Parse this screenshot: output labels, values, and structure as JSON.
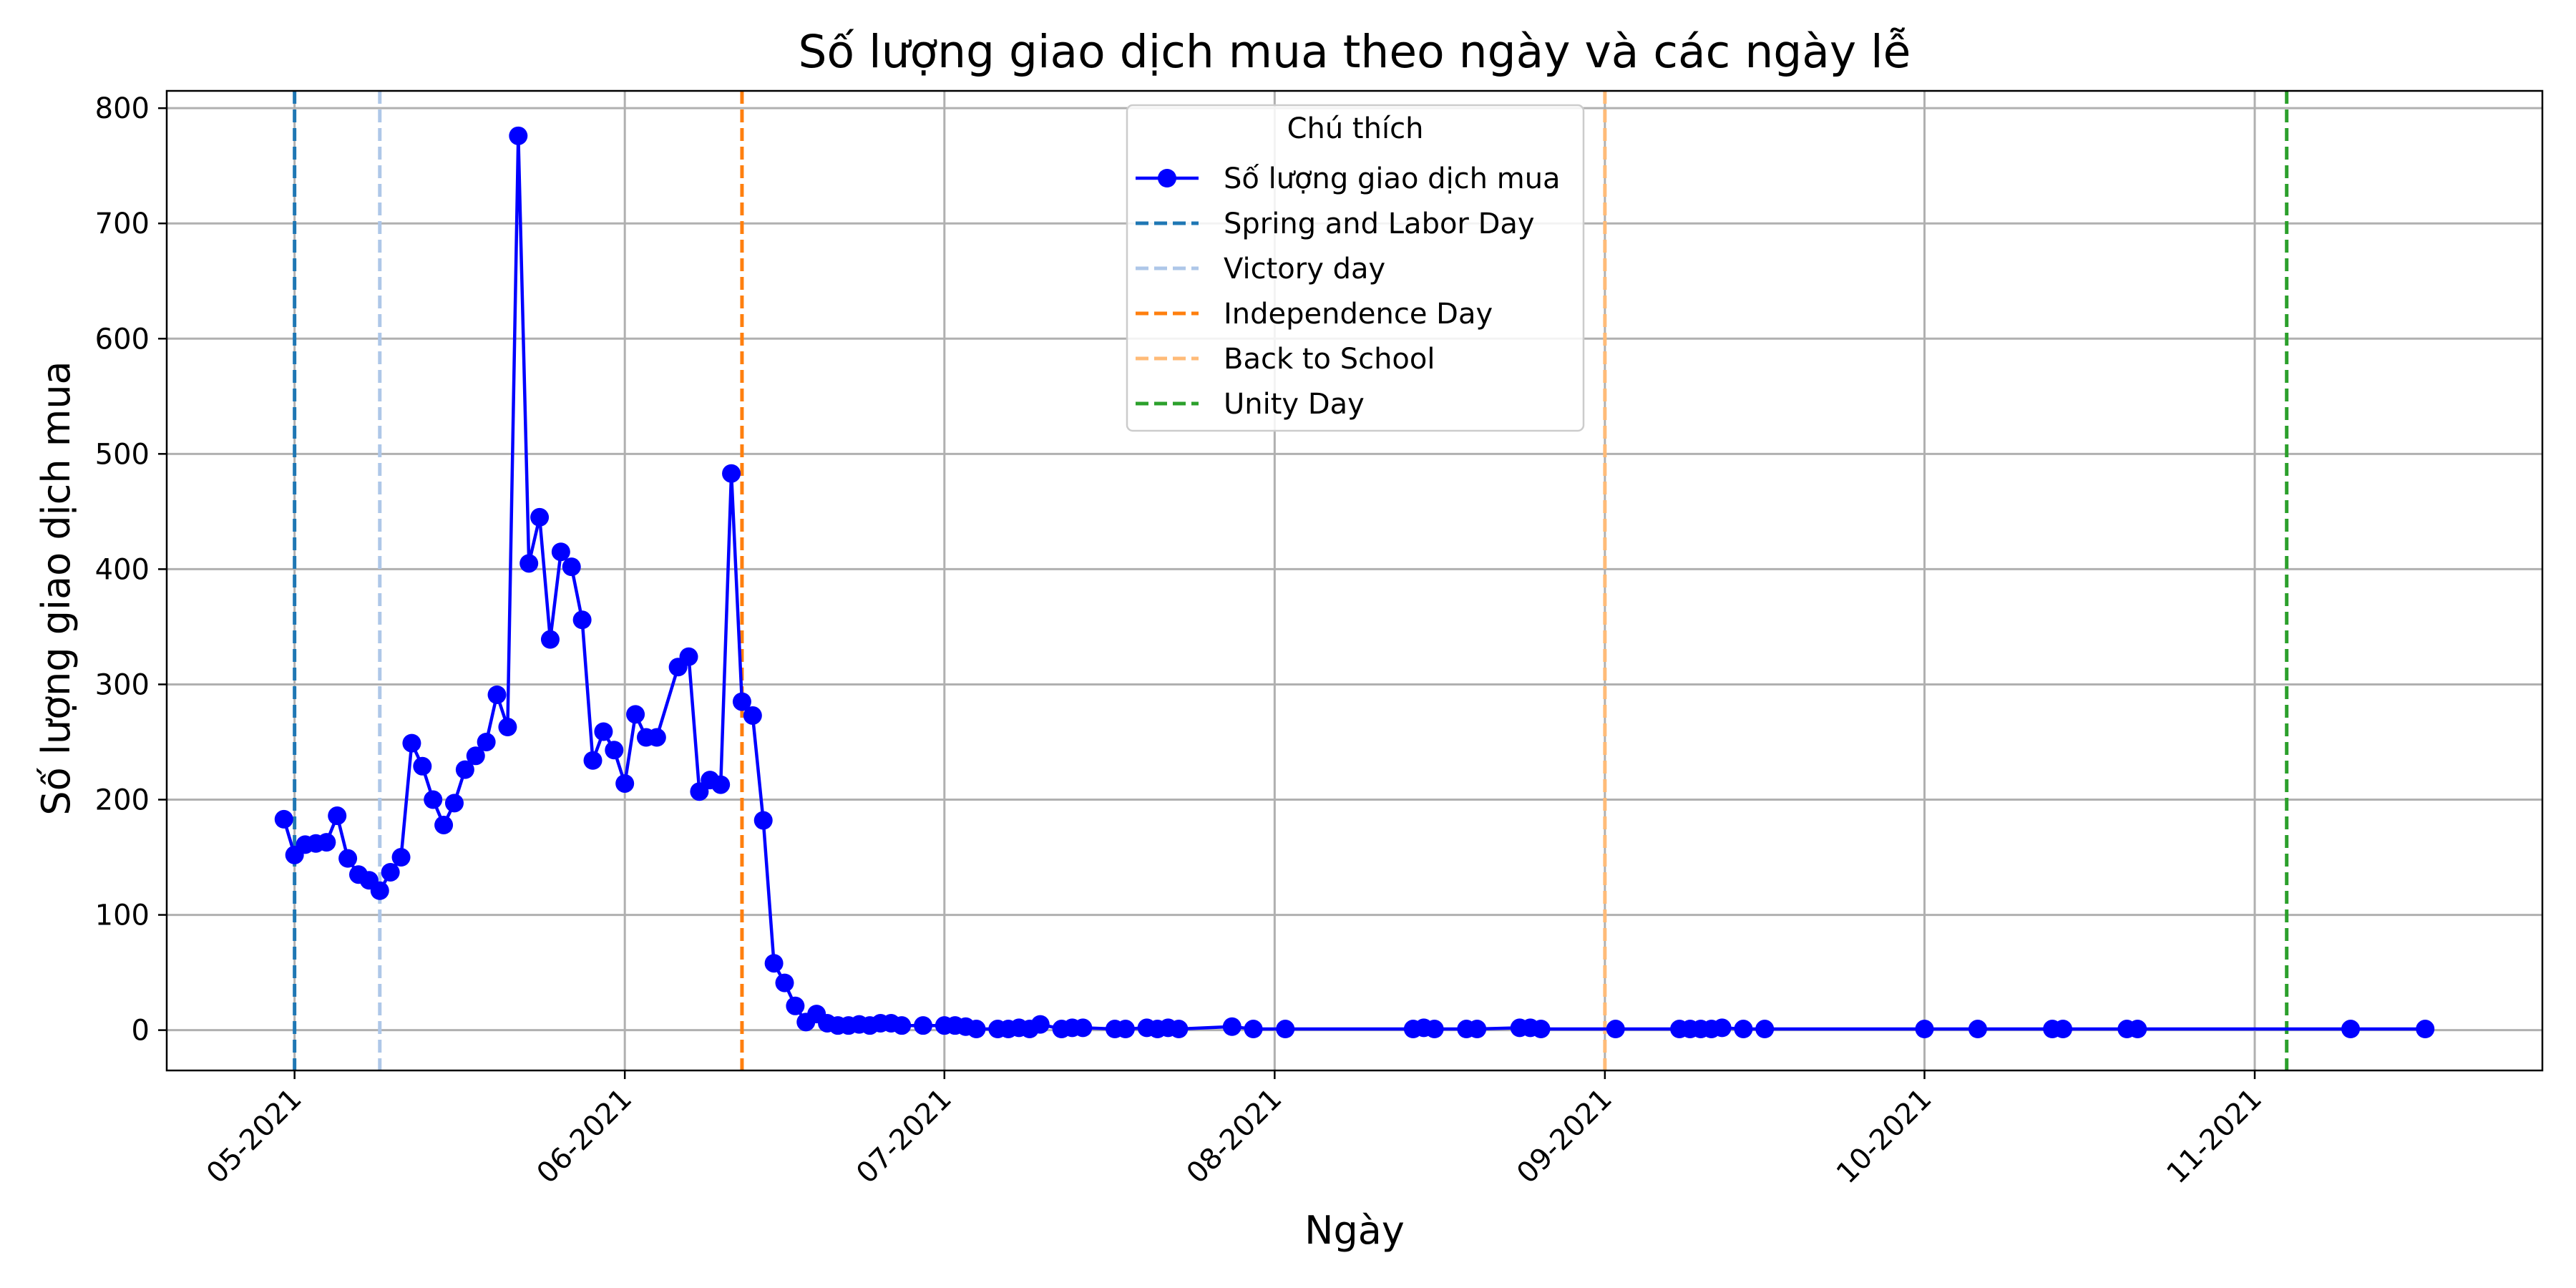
{
  "chart_data": {
    "type": "line",
    "title": "Số lượng giao dịch mua theo ngày và các ngày lễ",
    "xlabel": "Ngày",
    "ylabel": "Số lượng giao dịch mua",
    "x_axis_type": "date",
    "xlim": [
      "2021-04-19",
      "2021-11-28"
    ],
    "ylim": [
      -35,
      815
    ],
    "y_ticks": [
      0,
      100,
      200,
      300,
      400,
      500,
      600,
      700,
      800
    ],
    "x_ticks": [
      {
        "date": "2021-05-01",
        "label": "05-2021"
      },
      {
        "date": "2021-06-01",
        "label": "06-2021"
      },
      {
        "date": "2021-07-01",
        "label": "07-2021"
      },
      {
        "date": "2021-08-01",
        "label": "08-2021"
      },
      {
        "date": "2021-09-01",
        "label": "09-2021"
      },
      {
        "date": "2021-10-01",
        "label": "10-2021"
      },
      {
        "date": "2021-11-01",
        "label": "11-2021"
      }
    ],
    "grid": true,
    "legend": {
      "title": "Chú thích",
      "position": "top-center"
    },
    "series": [
      {
        "name": "Số lượng giao dịch mua",
        "color": "#0000ff",
        "marker": "circle",
        "points": [
          {
            "x": "2021-04-30",
            "y": 183
          },
          {
            "x": "2021-05-01",
            "y": 152
          },
          {
            "x": "2021-05-02",
            "y": 161
          },
          {
            "x": "2021-05-03",
            "y": 162
          },
          {
            "x": "2021-05-04",
            "y": 163
          },
          {
            "x": "2021-05-05",
            "y": 186
          },
          {
            "x": "2021-05-06",
            "y": 149
          },
          {
            "x": "2021-05-07",
            "y": 135
          },
          {
            "x": "2021-05-08",
            "y": 130
          },
          {
            "x": "2021-05-09",
            "y": 121
          },
          {
            "x": "2021-05-10",
            "y": 137
          },
          {
            "x": "2021-05-11",
            "y": 150
          },
          {
            "x": "2021-05-12",
            "y": 249
          },
          {
            "x": "2021-05-13",
            "y": 229
          },
          {
            "x": "2021-05-14",
            "y": 200
          },
          {
            "x": "2021-05-15",
            "y": 178
          },
          {
            "x": "2021-05-16",
            "y": 197
          },
          {
            "x": "2021-05-17",
            "y": 226
          },
          {
            "x": "2021-05-18",
            "y": 238
          },
          {
            "x": "2021-05-19",
            "y": 250
          },
          {
            "x": "2021-05-20",
            "y": 291
          },
          {
            "x": "2021-05-21",
            "y": 263
          },
          {
            "x": "2021-05-22",
            "y": 776
          },
          {
            "x": "2021-05-23",
            "y": 405
          },
          {
            "x": "2021-05-24",
            "y": 445
          },
          {
            "x": "2021-05-25",
            "y": 339
          },
          {
            "x": "2021-05-26",
            "y": 415
          },
          {
            "x": "2021-05-27",
            "y": 402
          },
          {
            "x": "2021-05-28",
            "y": 356
          },
          {
            "x": "2021-05-29",
            "y": 234
          },
          {
            "x": "2021-05-30",
            "y": 259
          },
          {
            "x": "2021-05-31",
            "y": 243
          },
          {
            "x": "2021-06-01",
            "y": 214
          },
          {
            "x": "2021-06-02",
            "y": 274
          },
          {
            "x": "2021-06-03",
            "y": 254
          },
          {
            "x": "2021-06-04",
            "y": 254
          },
          {
            "x": "2021-06-06",
            "y": 315
          },
          {
            "x": "2021-06-07",
            "y": 324
          },
          {
            "x": "2021-06-08",
            "y": 207
          },
          {
            "x": "2021-06-09",
            "y": 217
          },
          {
            "x": "2021-06-10",
            "y": 213
          },
          {
            "x": "2021-06-11",
            "y": 483
          },
          {
            "x": "2021-06-12",
            "y": 285
          },
          {
            "x": "2021-06-13",
            "y": 273
          },
          {
            "x": "2021-06-14",
            "y": 182
          },
          {
            "x": "2021-06-15",
            "y": 58
          },
          {
            "x": "2021-06-16",
            "y": 41
          },
          {
            "x": "2021-06-17",
            "y": 21
          },
          {
            "x": "2021-06-18",
            "y": 7
          },
          {
            "x": "2021-06-19",
            "y": 14
          },
          {
            "x": "2021-06-20",
            "y": 6
          },
          {
            "x": "2021-06-21",
            "y": 4
          },
          {
            "x": "2021-06-22",
            "y": 4
          },
          {
            "x": "2021-06-23",
            "y": 5
          },
          {
            "x": "2021-06-24",
            "y": 4
          },
          {
            "x": "2021-06-25",
            "y": 6
          },
          {
            "x": "2021-06-26",
            "y": 6
          },
          {
            "x": "2021-06-27",
            "y": 4
          },
          {
            "x": "2021-06-29",
            "y": 4
          },
          {
            "x": "2021-07-01",
            "y": 4
          },
          {
            "x": "2021-07-02",
            "y": 4
          },
          {
            "x": "2021-07-03",
            "y": 3
          },
          {
            "x": "2021-07-04",
            "y": 1
          },
          {
            "x": "2021-07-06",
            "y": 1
          },
          {
            "x": "2021-07-07",
            "y": 1
          },
          {
            "x": "2021-07-08",
            "y": 2
          },
          {
            "x": "2021-07-09",
            "y": 1
          },
          {
            "x": "2021-07-10",
            "y": 5
          },
          {
            "x": "2021-07-12",
            "y": 1
          },
          {
            "x": "2021-07-13",
            "y": 2
          },
          {
            "x": "2021-07-14",
            "y": 2
          },
          {
            "x": "2021-07-17",
            "y": 1
          },
          {
            "x": "2021-07-18",
            "y": 1
          },
          {
            "x": "2021-07-20",
            "y": 2
          },
          {
            "x": "2021-07-21",
            "y": 1
          },
          {
            "x": "2021-07-22",
            "y": 2
          },
          {
            "x": "2021-07-23",
            "y": 1
          },
          {
            "x": "2021-07-28",
            "y": 3
          },
          {
            "x": "2021-07-30",
            "y": 1
          },
          {
            "x": "2021-08-02",
            "y": 1
          },
          {
            "x": "2021-08-14",
            "y": 1
          },
          {
            "x": "2021-08-15",
            "y": 2
          },
          {
            "x": "2021-08-16",
            "y": 1
          },
          {
            "x": "2021-08-19",
            "y": 1
          },
          {
            "x": "2021-08-20",
            "y": 1
          },
          {
            "x": "2021-08-24",
            "y": 2
          },
          {
            "x": "2021-08-25",
            "y": 2
          },
          {
            "x": "2021-08-26",
            "y": 1
          },
          {
            "x": "2021-09-02",
            "y": 1
          },
          {
            "x": "2021-09-08",
            "y": 1
          },
          {
            "x": "2021-09-09",
            "y": 1
          },
          {
            "x": "2021-09-10",
            "y": 1
          },
          {
            "x": "2021-09-11",
            "y": 1
          },
          {
            "x": "2021-09-12",
            "y": 2
          },
          {
            "x": "2021-09-14",
            "y": 1
          },
          {
            "x": "2021-09-16",
            "y": 1
          },
          {
            "x": "2021-10-01",
            "y": 1
          },
          {
            "x": "2021-10-06",
            "y": 1
          },
          {
            "x": "2021-10-13",
            "y": 1
          },
          {
            "x": "2021-10-14",
            "y": 1
          },
          {
            "x": "2021-10-20",
            "y": 1
          },
          {
            "x": "2021-10-21",
            "y": 1
          },
          {
            "x": "2021-11-10",
            "y": 1
          },
          {
            "x": "2021-11-17",
            "y": 1
          }
        ]
      }
    ],
    "holidays": [
      {
        "name": "Spring and Labor Day",
        "date": "2021-05-01",
        "color": "#1f77b4"
      },
      {
        "name": "Victory day",
        "date": "2021-05-09",
        "color": "#aec7e8"
      },
      {
        "name": "Independence Day",
        "date": "2021-06-12",
        "color": "#ff7f0e"
      },
      {
        "name": "Back to School",
        "date": "2021-09-01",
        "color": "#ffbb78"
      },
      {
        "name": "Unity Day",
        "date": "2021-11-04",
        "color": "#2ca02c"
      }
    ]
  }
}
